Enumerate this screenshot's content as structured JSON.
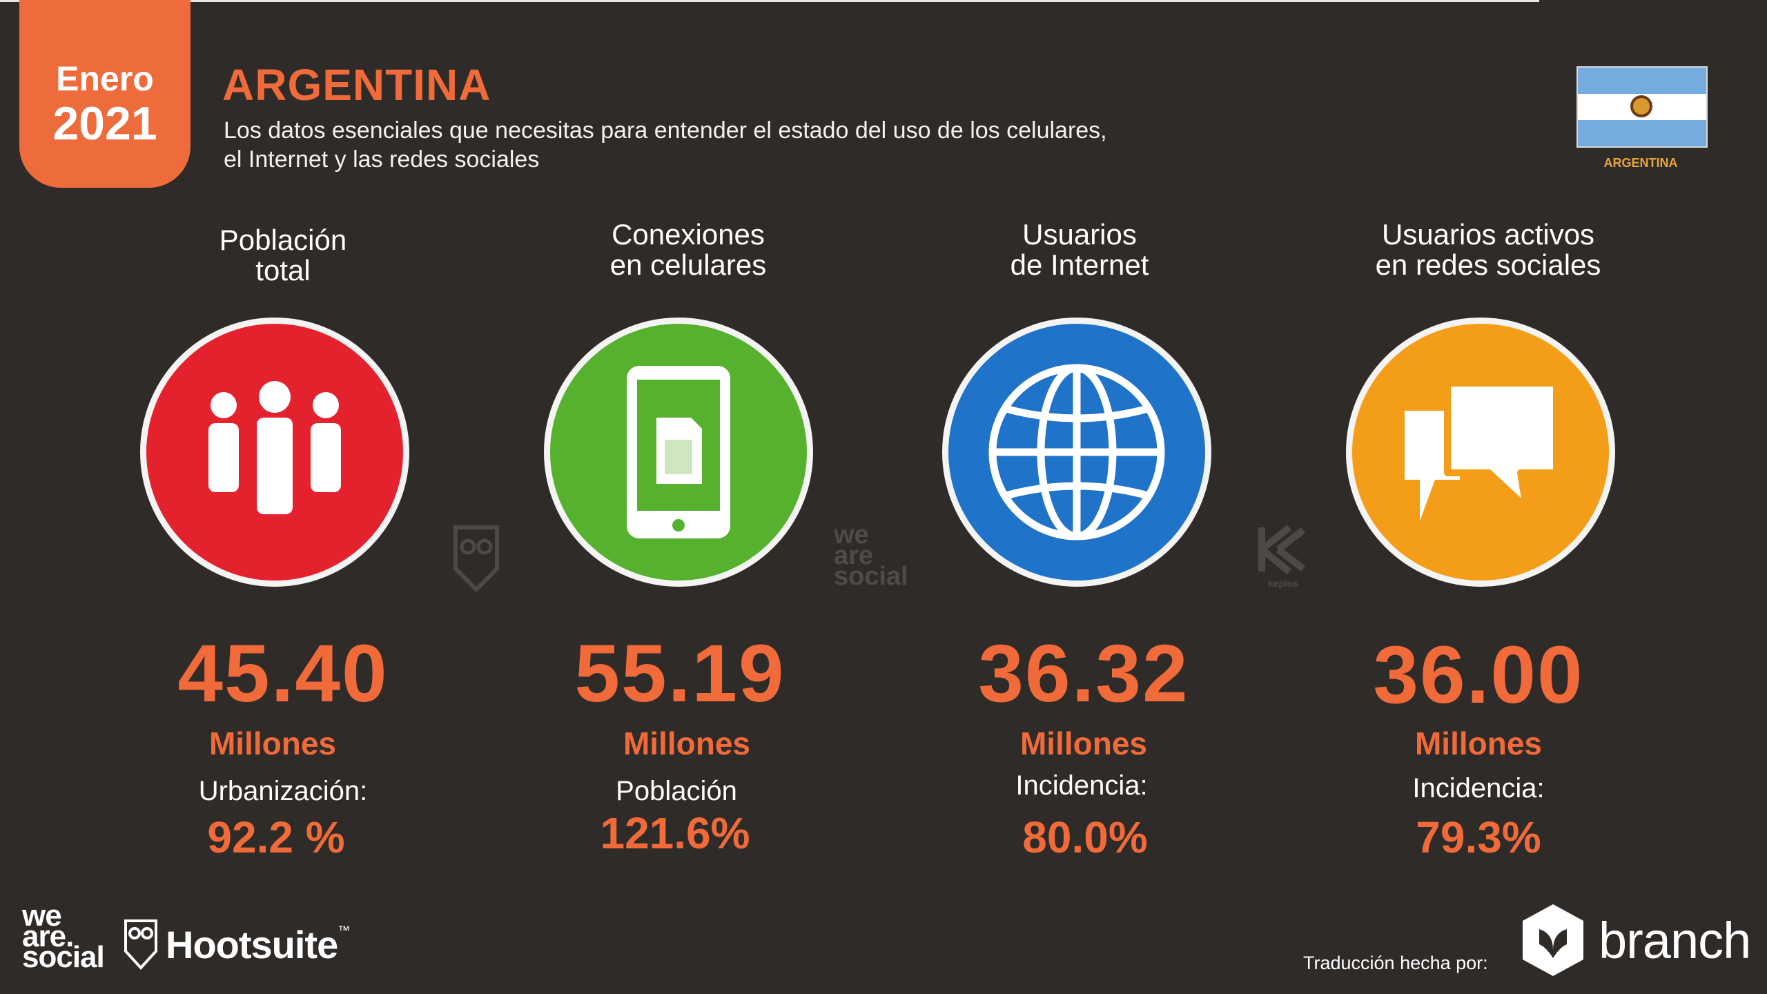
{
  "header": {
    "month": "Enero",
    "year": "2021",
    "title": "ARGENTINA",
    "subtitle_line1": "Los datos esenciales que necesitas para entender el estado del uso de los celulares,",
    "subtitle_line2": "el Internet y las redes sociales",
    "flag_caption": "ARGENTINA"
  },
  "stats": [
    {
      "title_line1": "Población",
      "title_line2": "total",
      "value": "45.40",
      "unit": "Millones",
      "sub_label": "Urbanización:",
      "sub_value": "92.2 %",
      "color": "#e3222d",
      "icon": "people-icon"
    },
    {
      "title_line1": "Conexiones",
      "title_line2": "en celulares",
      "value": "55.19",
      "unit": "Millones",
      "sub_label": "Población",
      "sub_value": "121.6%",
      "color": "#56b12f",
      "icon": "mobile-phone-icon"
    },
    {
      "title_line1": "Usuarios",
      "title_line2": "de Internet",
      "value": "36.32",
      "unit": "Millones",
      "sub_label": "Incidencia:",
      "sub_value": "80.0%",
      "color": "#1f73c9",
      "icon": "globe-icon"
    },
    {
      "title_line1": "Usuarios activos",
      "title_line2": "en redes sociales",
      "value": "36.00",
      "unit": "Millones",
      "sub_label": "Incidencia:",
      "sub_value": "79.3%",
      "color": "#f49d18",
      "icon": "chat-bubbles-icon"
    }
  ],
  "watermarks": {
    "was_line1": "we",
    "was_line2": "are",
    "was_line3": "social",
    "kepios_text": "kepios"
  },
  "footer": {
    "was_line1": "we",
    "was_line2": "are.",
    "was_line3": "social",
    "hootsuite": "Hootsuite",
    "hootsuite_tm": "™",
    "credit": "Traducción hecha por:",
    "branch": "branch"
  }
}
